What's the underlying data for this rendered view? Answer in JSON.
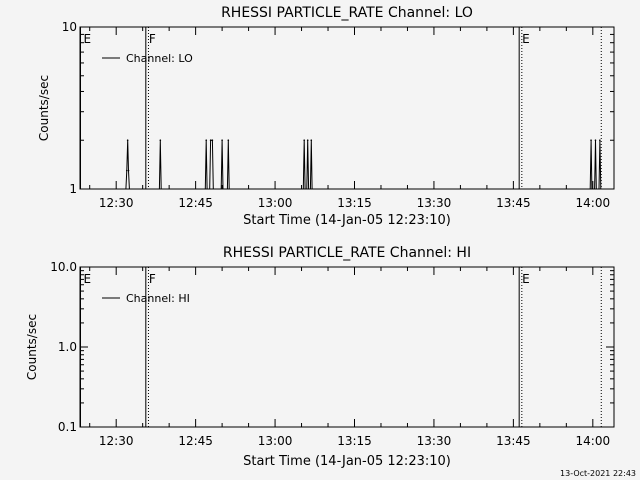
{
  "footer": {
    "timestamp": "13-Oct-2021 22:43"
  },
  "chart_data": [
    {
      "type": "line",
      "title": "RHESSI PARTICLE_RATE Channel: LO",
      "xlabel": "Start Time (14-Jan-05 12:23:10)",
      "ylabel": "Counts/sec",
      "xlim": [
        "12:23:10",
        "14:04:00"
      ],
      "x_ticks": [
        "12:30",
        "12:45",
        "13:00",
        "13:15",
        "13:30",
        "13:45",
        "14:00"
      ],
      "y_scale": "log",
      "ylim": [
        1,
        10
      ],
      "y_ticks": [
        "1",
        "10"
      ],
      "legend": {
        "position": "top-left",
        "label": "Channel: LO"
      },
      "grid": false,
      "markers": [
        {
          "time": "12:23:10",
          "label": "E",
          "style": "solid"
        },
        {
          "time": "12:35:30",
          "label": "F",
          "style": "solid"
        },
        {
          "time": "12:36:00",
          "label": "",
          "style": "dotted"
        },
        {
          "time": "13:46:00",
          "label": "E",
          "style": "solid"
        },
        {
          "time": "13:46:30",
          "label": "",
          "style": "dotted"
        },
        {
          "time": "14:01:30",
          "label": "",
          "style": "dotted"
        }
      ],
      "series": [
        {
          "name": "Channel: LO",
          "points": [
            [
              "12:31:50",
              1
            ],
            [
              "12:32:00",
              1.3
            ],
            [
              "12:32:10",
              2
            ],
            [
              "12:32:20",
              1.3
            ],
            [
              "12:32:30",
              1
            ],
            [
              "12:38:10",
              1
            ],
            [
              "12:38:20",
              2
            ],
            [
              "12:38:30",
              1
            ],
            [
              "12:46:50",
              1
            ],
            [
              "12:47:00",
              2
            ],
            [
              "12:47:10",
              1
            ],
            [
              "12:47:40",
              1
            ],
            [
              "12:47:50",
              2
            ],
            [
              "12:48:10",
              2
            ],
            [
              "12:48:20",
              1
            ],
            [
              "12:49:50",
              1
            ],
            [
              "12:50:00",
              2
            ],
            [
              "12:50:10",
              1
            ],
            [
              "12:51:00",
              1
            ],
            [
              "12:51:10",
              2
            ],
            [
              "12:51:20",
              1
            ],
            [
              "13:05:20",
              1
            ],
            [
              "13:05:30",
              2
            ],
            [
              "13:05:40",
              1
            ],
            [
              "13:06:00",
              1
            ],
            [
              "13:06:10",
              2
            ],
            [
              "13:06:20",
              1
            ],
            [
              "13:06:40",
              1
            ],
            [
              "13:06:50",
              2
            ],
            [
              "13:07:00",
              1
            ],
            [
              "13:59:30",
              1
            ],
            [
              "13:59:40",
              2
            ],
            [
              "13:59:50",
              1
            ],
            [
              "14:00:20",
              1
            ],
            [
              "14:00:30",
              2
            ],
            [
              "14:00:40",
              1
            ],
            [
              "14:01:10",
              1
            ],
            [
              "14:01:20",
              2
            ],
            [
              "14:01:30",
              1
            ]
          ]
        }
      ]
    },
    {
      "type": "line",
      "title": "RHESSI PARTICLE_RATE Channel: HI",
      "xlabel": "Start Time (14-Jan-05 12:23:10)",
      "ylabel": "Counts/sec",
      "xlim": [
        "12:23:10",
        "14:04:00"
      ],
      "x_ticks": [
        "12:30",
        "12:45",
        "13:00",
        "13:15",
        "13:30",
        "13:45",
        "14:00"
      ],
      "y_scale": "log",
      "ylim": [
        0.1,
        10
      ],
      "y_ticks": [
        "0.1",
        "1.0",
        "10.0"
      ],
      "legend": {
        "position": "top-left",
        "label": "Channel: HI"
      },
      "grid": false,
      "markers": [
        {
          "time": "12:23:10",
          "label": "E",
          "style": "solid"
        },
        {
          "time": "12:35:30",
          "label": "F",
          "style": "solid"
        },
        {
          "time": "12:36:00",
          "label": "",
          "style": "dotted"
        },
        {
          "time": "13:46:00",
          "label": "E",
          "style": "solid"
        },
        {
          "time": "13:46:30",
          "label": "",
          "style": "dotted"
        },
        {
          "time": "14:01:30",
          "label": "",
          "style": "dotted"
        }
      ],
      "series": [
        {
          "name": "Channel: HI",
          "points": []
        }
      ]
    }
  ]
}
